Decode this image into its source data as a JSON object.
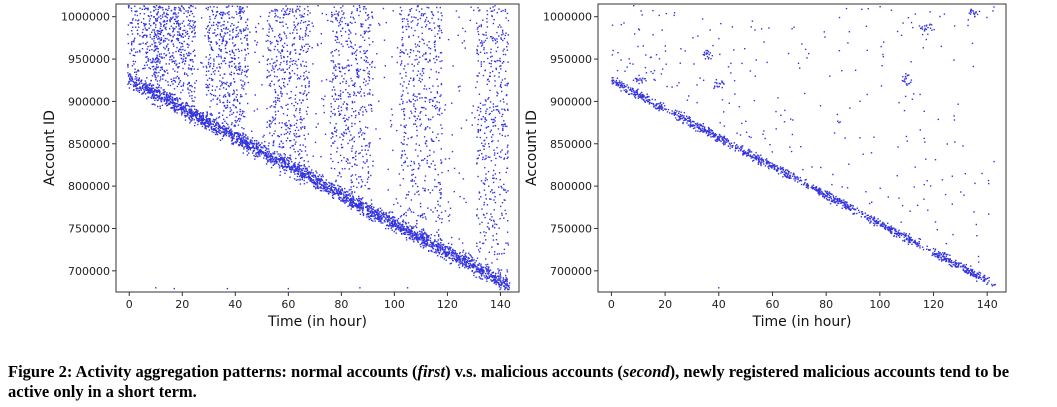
{
  "chart_data": [
    {
      "type": "scatter",
      "panel": "first",
      "xlabel": "Time (in hour)",
      "ylabel": "Account ID",
      "xlim": [
        -5,
        147
      ],
      "ylim": [
        675000,
        1015000
      ],
      "xticks": [
        0,
        20,
        40,
        60,
        80,
        100,
        120,
        140
      ],
      "yticks": [
        700000,
        750000,
        800000,
        850000,
        900000,
        950000,
        1000000
      ],
      "grid": false,
      "legend": "none",
      "color": "#3333dd",
      "pattern": "normal",
      "diagonal": {
        "x": [
          0,
          143
        ],
        "y": [
          925000,
          683000
        ]
      },
      "bottom_outliers": [
        [
          10,
          680000
        ],
        [
          17,
          679000
        ],
        [
          37,
          679000
        ],
        [
          60,
          679000
        ],
        [
          87,
          680000
        ],
        [
          105,
          680000
        ]
      ]
    },
    {
      "type": "scatter",
      "panel": "second",
      "xlabel": "Time (in hour)",
      "ylabel": "Account ID",
      "xlim": [
        -5,
        147
      ],
      "ylim": [
        675000,
        1015000
      ],
      "xticks": [
        0,
        20,
        40,
        60,
        80,
        100,
        120,
        140
      ],
      "yticks": [
        700000,
        750000,
        800000,
        850000,
        900000,
        950000,
        1000000
      ],
      "grid": false,
      "legend": "none",
      "color": "#3333dd",
      "pattern": "malicious",
      "diagonal": {
        "x": [
          0,
          143
        ],
        "y": [
          925000,
          683000
        ]
      },
      "bottom_outliers": [
        [
          40,
          680000
        ],
        [
          88,
          798000
        ]
      ]
    }
  ],
  "caption": {
    "lead": "Figure 2: Activity aggregation patterns: normal accounts (",
    "first": "first",
    "mid": ") v.s. malicious accounts (",
    "second": "second",
    "tail": "), newly registered malicious accounts tend to be active only in a short term."
  }
}
